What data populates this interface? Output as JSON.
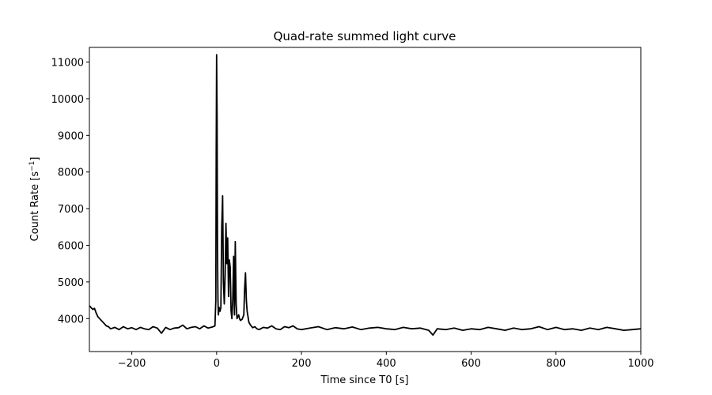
{
  "chart_data": {
    "type": "line",
    "title": "Quad-rate summed light curve",
    "xlabel": "Time since T0 [s]",
    "ylabel_main": "Count Rate [s",
    "ylabel_sup": "−1",
    "ylabel_close": "]",
    "xlim": [
      -300,
      1000
    ],
    "ylim": [
      3100,
      11400
    ],
    "xticks": [
      -200,
      0,
      200,
      400,
      600,
      800,
      1000
    ],
    "xtick_labels": [
      "−200",
      "0",
      "200",
      "400",
      "600",
      "800",
      "1000"
    ],
    "yticks": [
      4000,
      5000,
      6000,
      7000,
      8000,
      9000,
      10000,
      11000
    ],
    "ytick_labels": [
      "4000",
      "5000",
      "6000",
      "7000",
      "8000",
      "9000",
      "10000",
      "11000"
    ],
    "grid": false,
    "line_color": "#000000",
    "series": [
      {
        "x": [
          -300,
          -296,
          -292,
          -288,
          -284,
          -280,
          -276,
          -272,
          -268,
          -264,
          -260,
          -255,
          -250,
          -240,
          -230,
          -220,
          -210,
          -200,
          -190,
          -180,
          -170,
          -160,
          -150,
          -140,
          -130,
          -120,
          -110,
          -100,
          -90,
          -80,
          -70,
          -60,
          -50,
          -40,
          -30,
          -20,
          -10,
          -4,
          -2,
          -1,
          0,
          1,
          2,
          3,
          4,
          6,
          8,
          10,
          12,
          14,
          16,
          18,
          20,
          22,
          24,
          26,
          28,
          30,
          32,
          34,
          36,
          38,
          40,
          42,
          44,
          46,
          48,
          50,
          52,
          54,
          56,
          60,
          64,
          66,
          68,
          70,
          72,
          74,
          76,
          80,
          85,
          90,
          95,
          100,
          110,
          120,
          130,
          140,
          150,
          160,
          170,
          180,
          190,
          200,
          220,
          240,
          260,
          280,
          300,
          320,
          340,
          360,
          380,
          400,
          420,
          440,
          460,
          480,
          500,
          510,
          520,
          540,
          560,
          580,
          600,
          620,
          640,
          660,
          680,
          700,
          720,
          740,
          760,
          780,
          800,
          820,
          840,
          860,
          880,
          900,
          920,
          940,
          960,
          980,
          1000
        ],
        "y": [
          4350,
          4300,
          4250,
          4280,
          4150,
          4050,
          4000,
          3950,
          3900,
          3850,
          3800,
          3780,
          3720,
          3760,
          3700,
          3780,
          3720,
          3750,
          3700,
          3760,
          3720,
          3700,
          3780,
          3740,
          3600,
          3760,
          3700,
          3740,
          3750,
          3820,
          3720,
          3760,
          3780,
          3720,
          3800,
          3740,
          3770,
          3800,
          4500,
          8500,
          11200,
          9500,
          6000,
          4500,
          4100,
          4300,
          4200,
          4300,
          6500,
          7350,
          5000,
          4400,
          5200,
          6600,
          5500,
          6200,
          4600,
          5600,
          5400,
          4200,
          4000,
          4500,
          5700,
          4100,
          6100,
          4400,
          4000,
          4050,
          4100,
          4000,
          3950,
          3980,
          4100,
          4800,
          5250,
          4500,
          4200,
          4050,
          3900,
          3820,
          3750,
          3780,
          3720,
          3700,
          3760,
          3740,
          3800,
          3720,
          3700,
          3780,
          3750,
          3800,
          3720,
          3700,
          3740,
          3780,
          3700,
          3750,
          3720,
          3770,
          3700,
          3740,
          3760,
          3720,
          3700,
          3760,
          3720,
          3740,
          3680,
          3550,
          3720,
          3700,
          3740,
          3680,
          3720,
          3700,
          3760,
          3720,
          3680,
          3740,
          3700,
          3720,
          3780,
          3700,
          3760,
          3700,
          3720,
          3680,
          3740,
          3700,
          3760,
          3720,
          3680,
          3700,
          3720
        ]
      }
    ]
  }
}
